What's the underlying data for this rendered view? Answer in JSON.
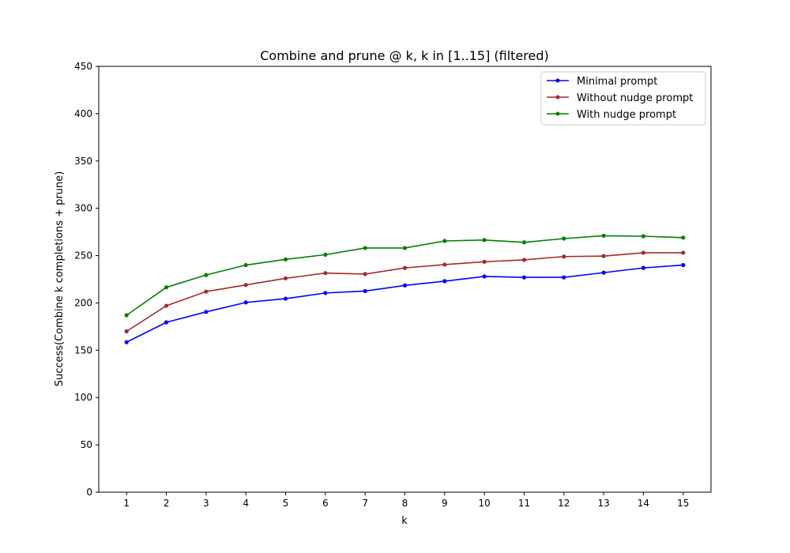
{
  "chart_data": {
    "type": "line",
    "title": "Combine and prune @ k, k in [1..15] (filtered)",
    "xlabel": "k",
    "ylabel": "Success(Combine k completions + prune)",
    "xlim": [
      0.3,
      15.7
    ],
    "ylim": [
      0,
      450
    ],
    "x": [
      1,
      2,
      3,
      4,
      5,
      6,
      7,
      8,
      9,
      10,
      11,
      12,
      13,
      14,
      15
    ],
    "y_ticks": [
      0,
      50,
      100,
      150,
      200,
      250,
      300,
      350,
      400,
      450
    ],
    "grid": false,
    "legend_position": "top-right",
    "series": [
      {
        "name": "Minimal prompt",
        "color": "#0000ff",
        "values": [
          158.5,
          179.5,
          190.5,
          200.5,
          204.5,
          210.5,
          212.5,
          218.5,
          223,
          228,
          227,
          227,
          232,
          237,
          240
        ]
      },
      {
        "name": "Without nudge prompt",
        "color": "#a52a2a",
        "values": [
          170,
          197,
          212,
          219,
          226,
          231.5,
          230.5,
          237,
          240.5,
          243.5,
          245.5,
          249,
          249.5,
          253,
          253
        ]
      },
      {
        "name": "With nudge prompt",
        "color": "#008000",
        "values": [
          187,
          216.5,
          229.5,
          240,
          246,
          251,
          258,
          258,
          265.5,
          266.5,
          264,
          268,
          271,
          270.5,
          269
        ]
      }
    ]
  }
}
